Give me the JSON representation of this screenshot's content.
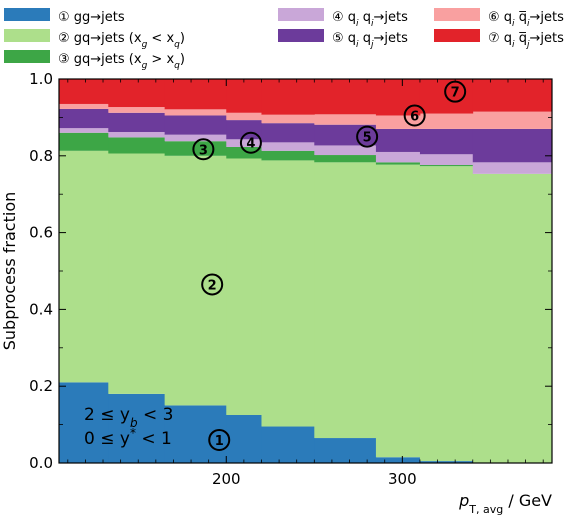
{
  "chart_data": {
    "type": "area",
    "xlabel": "p_T,avg / GeV",
    "xlabel_parts": {
      "var": "p",
      "sub": "T, avg",
      "unit": " / GeV"
    },
    "ylabel": "Subprocess fraction",
    "xlim": [
      105,
      385
    ],
    "ylim": [
      0.0,
      1.0
    ],
    "xticks": [
      200,
      300
    ],
    "yticks": [
      0.0,
      0.2,
      0.4,
      0.6,
      0.8,
      1.0
    ],
    "ytick_labels": [
      "0.0",
      "0.2",
      "0.4",
      "0.6",
      "0.8",
      "1.0"
    ],
    "xtick_labels": [
      "200",
      "300"
    ],
    "bin_edges": [
      105,
      133,
      165,
      200,
      220,
      250,
      285,
      310,
      340,
      385
    ],
    "series": [
      {
        "key": "1",
        "name": "gg→jets",
        "color": "#2b7bba",
        "values": [
          0.21,
          0.18,
          0.15,
          0.125,
          0.095,
          0.065,
          0.015,
          0.005,
          0.0
        ]
      },
      {
        "key": "2",
        "name": "gq→jets (x_g < x_q)",
        "color": "#addf8b",
        "values": [
          0.603,
          0.626,
          0.65,
          0.668,
          0.693,
          0.718,
          0.762,
          0.768,
          0.753
        ]
      },
      {
        "key": "3",
        "name": "gq→jets (x_g > x_q)",
        "color": "#3da646",
        "values": [
          0.047,
          0.042,
          0.038,
          0.03,
          0.025,
          0.019,
          0.006,
          0.003,
          0.0
        ]
      },
      {
        "key": "4",
        "name": "q_i q_i→jets",
        "color": "#c9a7d8",
        "values": [
          0.012,
          0.014,
          0.017,
          0.02,
          0.022,
          0.025,
          0.027,
          0.028,
          0.03
        ]
      },
      {
        "key": "5",
        "name": "q_i q_j→jets",
        "color": "#6c3b9b",
        "values": [
          0.05,
          0.05,
          0.05,
          0.05,
          0.05,
          0.054,
          0.06,
          0.066,
          0.087
        ]
      },
      {
        "key": "6",
        "name": "q_i q̅_i→jets",
        "color": "#f9a0a0",
        "values": [
          0.013,
          0.015,
          0.016,
          0.019,
          0.022,
          0.027,
          0.035,
          0.04,
          0.045
        ]
      },
      {
        "key": "7",
        "name": "q_i q̅_j→jets",
        "color": "#e2232a",
        "values": [
          0.065,
          0.073,
          0.079,
          0.088,
          0.093,
          0.092,
          0.095,
          0.09,
          0.085
        ]
      }
    ],
    "annotations": [
      {
        "key": "1",
        "label": "①",
        "x": 196,
        "y": 0.06
      },
      {
        "key": "2",
        "label": "②",
        "x": 192,
        "y": 0.465
      },
      {
        "key": "3",
        "label": "③",
        "x": 187,
        "y": 0.817
      },
      {
        "key": "4",
        "label": "④",
        "x": 214,
        "y": 0.834
      },
      {
        "key": "5",
        "label": "⑤",
        "x": 280,
        "y": 0.85
      },
      {
        "key": "6",
        "label": "⑥",
        "x": 307,
        "y": 0.905
      },
      {
        "key": "7",
        "label": "⑦",
        "x": 330,
        "y": 0.967
      }
    ],
    "kin_text": [
      "2 ≤ y_b < 3",
      "0 ≤ y* < 1"
    ],
    "legend": {
      "placement": "top",
      "entries": [
        {
          "key": "1",
          "color": "#2b7bba",
          "label": "① gg→jets"
        },
        {
          "key": "2",
          "color": "#addf8b",
          "label": "② gq→jets (x_g < x_q)"
        },
        {
          "key": "3",
          "color": "#3da646",
          "label": "③ gq→jets (x_g > x_q)"
        },
        {
          "key": "4",
          "color": "#c9a7d8",
          "label": "④ q_i q_i→jets"
        },
        {
          "key": "5",
          "color": "#6c3b9b",
          "label": "⑤ q_i q_j→jets"
        },
        {
          "key": "6",
          "color": "#f9a0a0",
          "label": "⑥ q_i q̅_i→jets"
        },
        {
          "key": "7",
          "color": "#e2232a",
          "label": "⑦ q_i q̅_j→jets"
        }
      ]
    }
  }
}
